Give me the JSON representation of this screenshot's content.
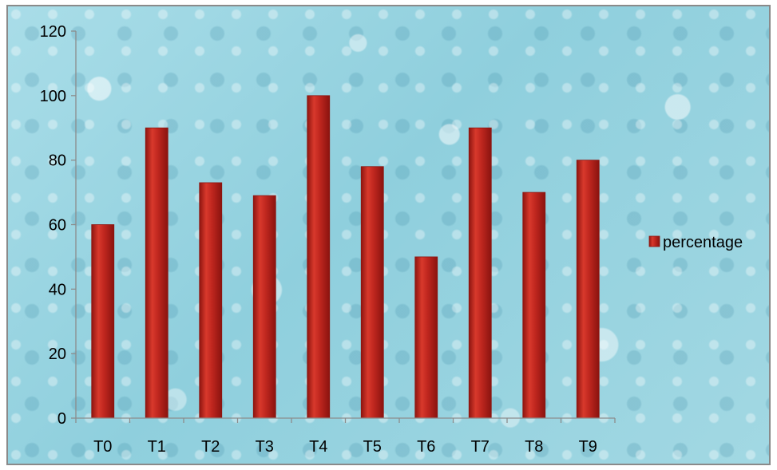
{
  "chart_data": {
    "type": "bar",
    "categories": [
      "T0",
      "T1",
      "T2",
      "T3",
      "T4",
      "T5",
      "T6",
      "T7",
      "T8",
      "T9"
    ],
    "series": [
      {
        "name": "percentage",
        "values": [
          60,
          90,
          73,
          69,
          100,
          78,
          50,
          90,
          70,
          80
        ],
        "color": "#c0271f"
      }
    ],
    "ylim": [
      0,
      120
    ],
    "yticks": [
      0,
      20,
      40,
      60,
      80,
      100,
      120
    ],
    "grid": false,
    "legend": "right"
  },
  "colors": {
    "bar": "#c0271f",
    "bar_dark": "#8e1510",
    "bar_light": "#e04a3c",
    "axis": "#8c8c8c"
  }
}
